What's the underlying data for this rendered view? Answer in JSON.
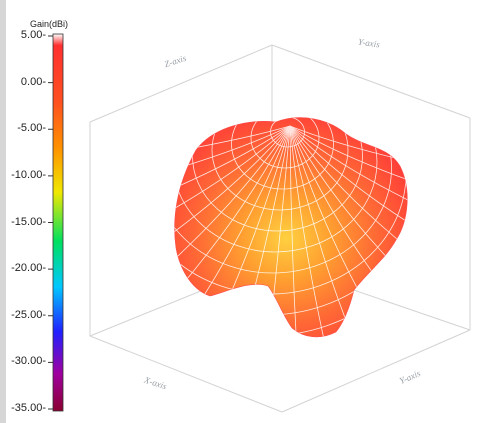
{
  "chart_data": {
    "type": "3d-radiation-pattern",
    "colorbar": {
      "title": "Gain(dBi)",
      "ticks": [
        "5.00",
        "0.00",
        "-5.00",
        "-10.00",
        "-15.00",
        "-20.00",
        "-25.00",
        "-30.00",
        "-35.00"
      ],
      "range": [
        -35,
        5
      ],
      "colors": [
        "#ff0000",
        "#9a0044",
        "#a000a0",
        "#2020ff",
        "#00c8ff",
        "#00e060",
        "#f0e800",
        "#ff9000",
        "#ff5020",
        "#ff2020",
        "#ffffff"
      ]
    },
    "axes": {
      "x": "X-axis",
      "y": "Y-axis",
      "z": "Z-axis"
    },
    "pattern": {
      "peak_color": "#ffc030",
      "edge_color": "#ff3030",
      "grid_color": "#ffffff"
    }
  }
}
